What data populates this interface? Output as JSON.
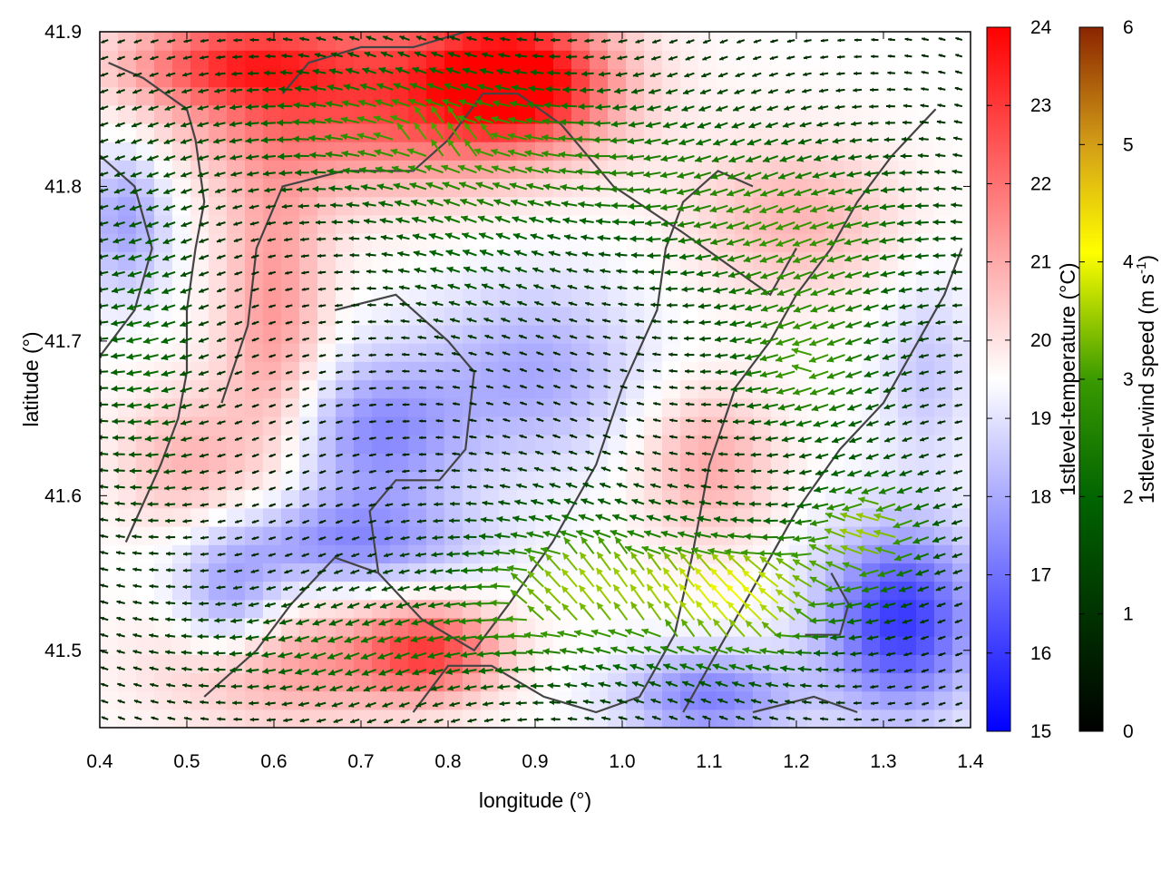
{
  "chart_data": {
    "type": "heatmap",
    "title": "",
    "xlabel": "longitude (°)",
    "ylabel": "latitude (°)",
    "xlim": [
      0.4,
      1.4
    ],
    "ylim": [
      41.45,
      41.9
    ],
    "x_ticks": [
      "0.4",
      "0.5",
      "0.6",
      "0.7",
      "0.8",
      "0.9",
      "1.0",
      "1.1",
      "1.2",
      "1.3",
      "1.4"
    ],
    "y_ticks": [
      "41.5",
      "41.6",
      "41.7",
      "41.8",
      "41.9"
    ],
    "colorbars": [
      {
        "label": "1stlevel-temperature (°C)",
        "range": [
          15,
          24
        ],
        "ticks": [
          "15",
          "16",
          "17",
          "18",
          "19",
          "20",
          "21",
          "22",
          "23",
          "24"
        ],
        "colors": [
          "#0000ff",
          "#ffffff",
          "#ff0000"
        ]
      },
      {
        "label_main": "1stlevel-wind speed (m s",
        "label_sup": "-1",
        "label_end": ")",
        "range": [
          0,
          6
        ],
        "ticks": [
          "0",
          "1",
          "2",
          "3",
          "4",
          "5",
          "6"
        ],
        "colors": [
          "#000000",
          "#006400",
          "#228b00",
          "#ffff00",
          "#d4a017",
          "#8b2500"
        ]
      }
    ],
    "temperature_regions": [
      {
        "lon": 0.72,
        "lat": 41.86,
        "r": [
          0.22,
          0.06
        ],
        "value": 22.6
      },
      {
        "lon": 0.88,
        "lat": 41.87,
        "r": [
          0.1,
          0.04
        ],
        "value": 23.5
      },
      {
        "lon": 0.55,
        "lat": 41.88,
        "r": [
          0.12,
          0.03
        ],
        "value": 21.8
      },
      {
        "lon": 0.6,
        "lat": 41.72,
        "r": [
          0.06,
          0.1
        ],
        "value": 21.3
      },
      {
        "lon": 0.5,
        "lat": 41.62,
        "r": [
          0.08,
          0.05
        ],
        "value": 20.8
      },
      {
        "lon": 0.78,
        "lat": 41.5,
        "r": [
          0.08,
          0.03
        ],
        "value": 22.5
      },
      {
        "lon": 0.62,
        "lat": 41.49,
        "r": [
          0.15,
          0.04
        ],
        "value": 21.2
      },
      {
        "lon": 1.1,
        "lat": 41.62,
        "r": [
          0.08,
          0.05
        ],
        "value": 21.0
      },
      {
        "lon": 1.2,
        "lat": 41.78,
        "r": [
          0.12,
          0.05
        ],
        "value": 20.8
      },
      {
        "lon": 0.43,
        "lat": 41.78,
        "r": [
          0.05,
          0.05
        ],
        "value": 17.8
      },
      {
        "lon": 0.72,
        "lat": 41.64,
        "r": [
          0.1,
          0.05
        ],
        "value": 17.5
      },
      {
        "lon": 0.9,
        "lat": 41.68,
        "r": [
          0.12,
          0.06
        ],
        "value": 18.0
      },
      {
        "lon": 0.68,
        "lat": 41.57,
        "r": [
          0.15,
          0.03
        ],
        "value": 17.6
      },
      {
        "lon": 0.55,
        "lat": 41.53,
        "r": [
          0.06,
          0.04
        ],
        "value": 17.8
      },
      {
        "lon": 1.32,
        "lat": 41.52,
        "r": [
          0.09,
          0.06
        ],
        "value": 16.0
      },
      {
        "lon": 1.1,
        "lat": 41.47,
        "r": [
          0.1,
          0.03
        ],
        "value": 17.3
      },
      {
        "lon": 1.35,
        "lat": 41.68,
        "r": [
          0.05,
          0.06
        ],
        "value": 18.5
      }
    ],
    "wind_regions": [
      {
        "lon": 0.72,
        "lat": 41.84,
        "r": [
          0.2,
          0.05
        ],
        "speed": 2.3
      },
      {
        "lon": 0.95,
        "lat": 41.82,
        "r": [
          0.25,
          0.06
        ],
        "speed": 2.2
      },
      {
        "lon": 1.22,
        "lat": 41.77,
        "r": [
          0.18,
          0.06
        ],
        "speed": 2.6
      },
      {
        "lon": 1.22,
        "lat": 41.68,
        "r": [
          0.1,
          0.05
        ],
        "speed": 2.8
      },
      {
        "lon": 0.95,
        "lat": 41.54,
        "r": [
          0.15,
          0.06
        ],
        "speed": 3.3
      },
      {
        "lon": 1.16,
        "lat": 41.53,
        "r": [
          0.12,
          0.05
        ],
        "speed": 3.5
      },
      {
        "lon": 1.3,
        "lat": 41.58,
        "r": [
          0.08,
          0.04
        ],
        "speed": 3.2
      },
      {
        "lon": 0.68,
        "lat": 41.5,
        "r": [
          0.18,
          0.04
        ],
        "speed": 2.2
      },
      {
        "lon": 0.46,
        "lat": 41.7,
        "r": [
          0.07,
          0.12
        ],
        "speed": 2.2
      },
      {
        "lon": 0.82,
        "lat": 41.75,
        "r": [
          0.1,
          0.05
        ],
        "speed": 1.6
      }
    ],
    "terrain_contours": [
      [
        [
          0.43,
          41.57
        ],
        [
          0.47,
          41.62
        ],
        [
          0.49,
          41.65
        ],
        [
          0.5,
          41.68
        ],
        [
          0.5,
          41.72
        ],
        [
          0.51,
          41.76
        ],
        [
          0.52,
          41.79
        ],
        [
          0.51,
          41.83
        ],
        [
          0.5,
          41.85
        ],
        [
          0.45,
          41.87
        ],
        [
          0.41,
          41.88
        ]
      ],
      [
        [
          0.52,
          41.47
        ],
        [
          0.58,
          41.5
        ],
        [
          0.62,
          41.53
        ],
        [
          0.67,
          41.56
        ],
        [
          0.72,
          41.55
        ],
        [
          0.77,
          41.52
        ],
        [
          0.83,
          41.5
        ],
        [
          0.87,
          41.53
        ],
        [
          0.92,
          41.57
        ],
        [
          0.97,
          41.62
        ],
        [
          1.0,
          41.67
        ],
        [
          1.04,
          41.72
        ],
        [
          1.05,
          41.76
        ],
        [
          1.07,
          41.79
        ],
        [
          1.11,
          41.81
        ],
        [
          1.15,
          41.8
        ]
      ],
      [
        [
          0.54,
          41.66
        ],
        [
          0.57,
          41.71
        ],
        [
          0.58,
          41.76
        ],
        [
          0.61,
          41.8
        ],
        [
          0.68,
          41.81
        ],
        [
          0.76,
          41.81
        ],
        [
          0.8,
          41.83
        ],
        [
          0.84,
          41.86
        ],
        [
          0.88,
          41.86
        ],
        [
          0.93,
          41.84
        ],
        [
          0.99,
          41.8
        ],
        [
          1.07,
          41.77
        ],
        [
          1.12,
          41.75
        ],
        [
          1.17,
          41.73
        ],
        [
          1.2,
          41.76
        ]
      ],
      [
        [
          0.61,
          41.86
        ],
        [
          0.64,
          41.88
        ],
        [
          0.7,
          41.89
        ],
        [
          0.76,
          41.89
        ],
        [
          0.82,
          41.9
        ]
      ],
      [
        [
          0.67,
          41.72
        ],
        [
          0.74,
          41.73
        ],
        [
          0.8,
          41.7
        ],
        [
          0.83,
          41.68
        ],
        [
          0.82,
          41.63
        ],
        [
          0.79,
          41.61
        ],
        [
          0.74,
          41.61
        ],
        [
          0.71,
          41.59
        ],
        [
          0.72,
          41.55
        ]
      ],
      [
        [
          0.76,
          41.46
        ],
        [
          0.8,
          41.49
        ],
        [
          0.85,
          41.49
        ],
        [
          0.91,
          41.47
        ],
        [
          0.97,
          41.46
        ],
        [
          1.02,
          41.47
        ],
        [
          1.06,
          41.51
        ],
        [
          1.08,
          41.56
        ],
        [
          1.1,
          41.62
        ],
        [
          1.13,
          41.67
        ],
        [
          1.17,
          41.7
        ],
        [
          1.2,
          41.73
        ],
        [
          1.24,
          41.76
        ],
        [
          1.27,
          41.79
        ],
        [
          1.31,
          41.82
        ],
        [
          1.36,
          41.85
        ]
      ],
      [
        [
          1.07,
          41.46
        ],
        [
          1.11,
          41.5
        ],
        [
          1.16,
          41.55
        ],
        [
          1.2,
          41.59
        ],
        [
          1.25,
          41.63
        ],
        [
          1.3,
          41.66
        ],
        [
          1.34,
          41.7
        ],
        [
          1.37,
          41.73
        ],
        [
          1.39,
          41.76
        ]
      ],
      [
        [
          1.15,
          41.46
        ],
        [
          1.22,
          41.47
        ],
        [
          1.27,
          41.46
        ]
      ],
      [
        [
          1.21,
          41.51
        ],
        [
          1.25,
          41.51
        ],
        [
          1.26,
          41.53
        ],
        [
          1.24,
          41.55
        ]
      ],
      [
        [
          0.4,
          41.69
        ],
        [
          0.44,
          41.72
        ],
        [
          0.46,
          41.76
        ],
        [
          0.44,
          41.8
        ],
        [
          0.4,
          41.82
        ]
      ]
    ]
  }
}
